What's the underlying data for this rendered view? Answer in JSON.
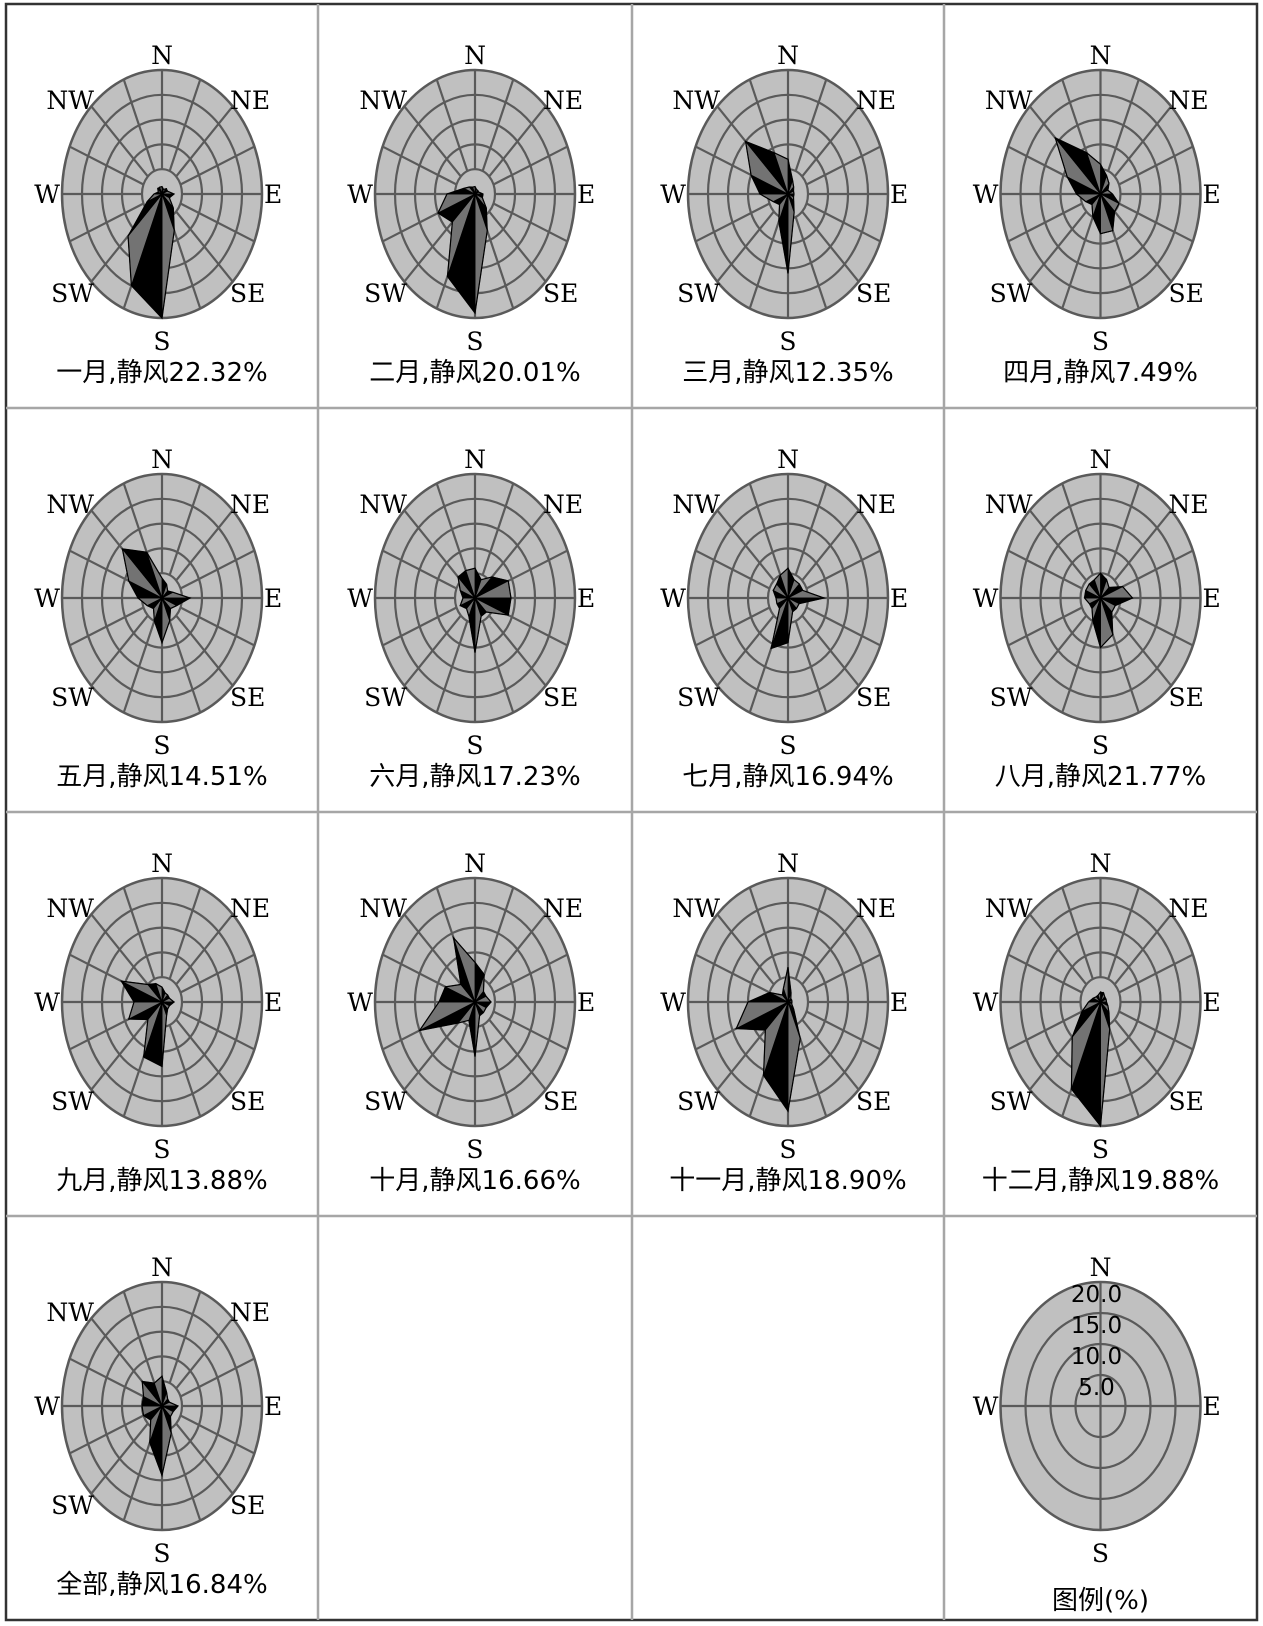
{
  "page": {
    "directions": [
      "N",
      "NNE",
      "NE",
      "ENE",
      "E",
      "ESE",
      "SE",
      "SSE",
      "S",
      "SSW",
      "SW",
      "WSW",
      "W",
      "WNW",
      "NW",
      "NNW"
    ],
    "compass_labels": {
      "N": "N",
      "NE": "NE",
      "E": "E",
      "SE": "SE",
      "S": "S",
      "SW": "SW",
      "W": "W",
      "NW": "NW"
    },
    "ring_step": 5,
    "ring_count": 5,
    "colors": {
      "background": "#ffffff",
      "rose_fill": "#c0c0c0",
      "grid_line": "#5a5a5a",
      "petal_dark": "#000000",
      "petal_mid": "#737373",
      "cell_border": "#a6a6a6",
      "outer_border": "#333333"
    }
  },
  "chart_data": [
    {
      "type": "radar",
      "month": "一月",
      "caption": "一月,静风22.32%",
      "calm_pct": 22.32,
      "values": [
        1.5,
        1,
        1.5,
        1.5,
        3,
        2,
        4,
        8,
        25,
        20,
        12,
        4,
        2,
        1,
        1.5,
        1.5
      ]
    },
    {
      "type": "radar",
      "month": "二月",
      "caption": "二月,静风20.01%",
      "calm_pct": 20.01,
      "values": [
        1.5,
        1,
        1,
        1,
        2,
        2,
        4,
        8,
        24,
        18,
        8,
        10,
        7,
        3,
        2,
        1.5
      ]
    },
    {
      "type": "radar",
      "month": "三月",
      "caption": "三月,静风12.35%",
      "calm_pct": 12.35,
      "values": [
        7,
        3,
        2,
        1.5,
        1.5,
        1.5,
        2,
        4,
        16,
        6,
        3,
        4,
        7,
        10,
        15,
        9
      ]
    },
    {
      "type": "radar",
      "month": "四月",
      "caption": "四月,静风7.49%",
      "calm_pct": 7.49,
      "values": [
        6,
        4,
        3,
        2,
        3,
        5,
        5,
        8,
        8,
        5,
        3,
        4,
        6,
        9,
        16,
        9
      ]
    },
    {
      "type": "radar",
      "month": "五月",
      "caption": "五月,静风14.51%",
      "calm_pct": 14.51,
      "values": [
        4,
        3,
        2,
        3,
        7,
        4,
        3,
        5,
        9,
        5,
        3,
        4,
        6,
        9,
        14,
        10
      ]
    },
    {
      "type": "radar",
      "month": "六月",
      "caption": "六月,静风17.23%",
      "calm_pct": 17.23,
      "values": [
        6,
        4,
        6,
        9,
        9,
        9,
        4,
        4,
        11,
        4,
        3,
        4,
        3,
        4,
        6,
        6
      ]
    },
    {
      "type": "radar",
      "month": "七月",
      "caption": "七月,静风16.94%",
      "calm_pct": 16.94,
      "values": [
        6,
        4,
        4,
        4,
        9,
        3,
        3,
        3,
        9,
        11,
        3,
        3,
        3,
        4,
        4,
        5
      ]
    },
    {
      "type": "radar",
      "month": "八月",
      "caption": "八月,静风21.77%",
      "calm_pct": 21.77,
      "values": [
        5,
        4,
        3,
        6,
        8,
        4,
        4,
        8,
        10,
        5,
        3,
        3,
        4,
        4,
        4,
        4
      ]
    },
    {
      "type": "radar",
      "month": "九月",
      "caption": "九月,静风13.88%",
      "calm_pct": 13.88,
      "values": [
        3,
        2,
        2,
        2,
        3,
        2,
        2,
        3,
        13,
        12,
        5,
        9,
        7,
        11,
        5,
        4
      ]
    },
    {
      "type": "radar",
      "month": "十月",
      "caption": "十月,静风16.66%",
      "calm_pct": 16.66,
      "values": [
        8,
        6,
        3,
        3,
        4,
        3,
        3,
        3,
        11,
        4,
        6,
        15,
        9,
        8,
        5,
        14
      ]
    },
    {
      "type": "radar",
      "month": "十一月",
      "caption": "十一月,静风18.90%",
      "calm_pct": 18.9,
      "values": [
        7,
        2,
        1,
        1,
        1,
        1,
        2,
        8,
        22,
        16,
        8,
        14,
        10,
        5,
        2,
        3
      ]
    },
    {
      "type": "radar",
      "month": "十二月",
      "caption": "十二月,静风19.88%",
      "calm_pct": 19.88,
      "values": [
        2,
        2,
        1.5,
        1.5,
        1.5,
        2,
        3,
        6,
        32,
        19,
        10,
        5,
        3,
        2,
        1.5,
        1.5
      ]
    },
    {
      "type": "radar",
      "month": "全部",
      "caption": "全部,静风16.84%",
      "calm_pct": 16.84,
      "values": [
        6,
        3,
        2,
        2,
        4,
        3,
        3,
        6,
        14,
        8,
        4,
        5,
        5,
        5,
        7,
        5
      ]
    }
  ],
  "legend": {
    "caption": "图例(%)",
    "ring_labels": [
      "5.0",
      "10.0",
      "15.0",
      "20.0"
    ],
    "compass_labels": {
      "N": "N",
      "E": "E",
      "S": "S",
      "W": "W"
    }
  }
}
